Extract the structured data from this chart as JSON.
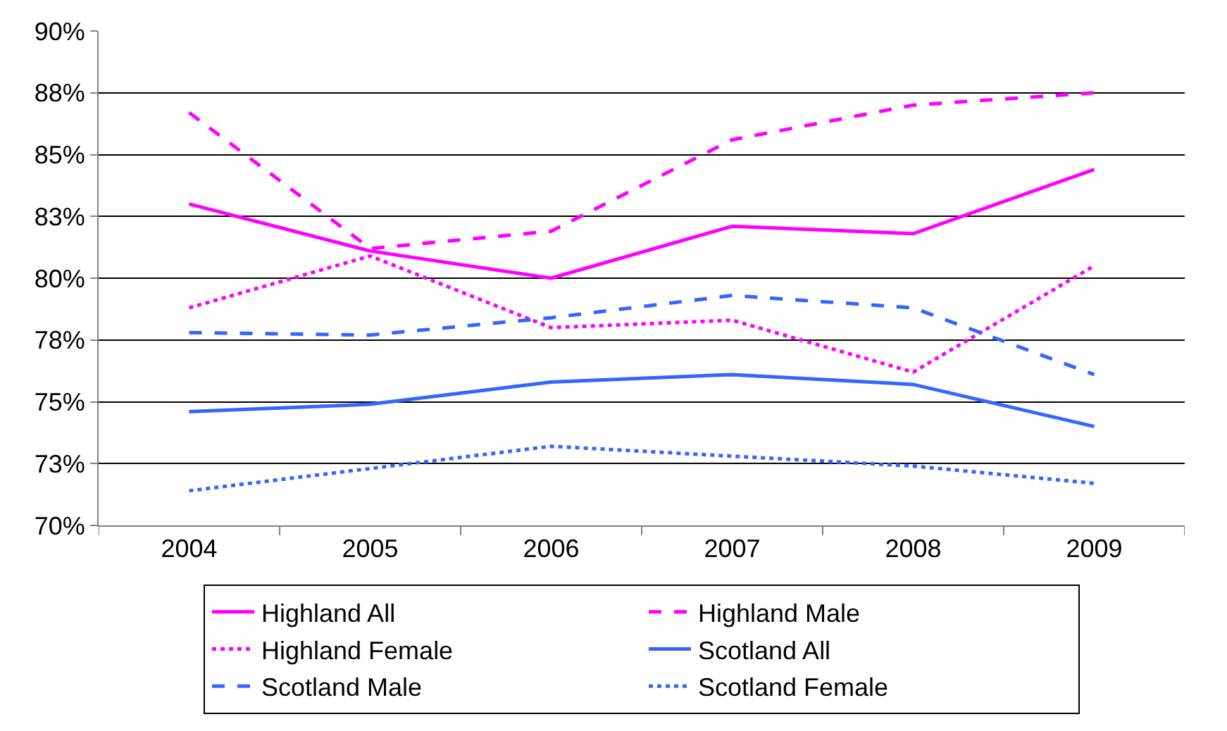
{
  "chart_data": {
    "type": "line",
    "categories": [
      "2004",
      "2005",
      "2006",
      "2007",
      "2008",
      "2009"
    ],
    "series": [
      {
        "name": "Highland All",
        "color": "#ff00ff",
        "line_style": "solid",
        "values": [
          83.0,
          81.1,
          80.0,
          82.1,
          81.8,
          84.4
        ]
      },
      {
        "name": "Highland Male",
        "color": "#ff00ff",
        "line_style": "dashed",
        "values": [
          86.7,
          81.2,
          81.9,
          85.6,
          87.0,
          87.5
        ]
      },
      {
        "name": "Highland Female",
        "color": "#ff00ff",
        "line_style": "dotted",
        "values": [
          78.8,
          80.9,
          78.0,
          78.3,
          76.2,
          80.5
        ]
      },
      {
        "name": "Scotland All",
        "color": "#3366ff",
        "line_style": "solid",
        "values": [
          74.6,
          74.9,
          75.8,
          76.1,
          75.7,
          74.0
        ]
      },
      {
        "name": "Scotland Male",
        "color": "#3366ff",
        "line_style": "dashed",
        "values": [
          77.8,
          77.7,
          78.4,
          79.3,
          78.8,
          76.1
        ]
      },
      {
        "name": "Scotland Female",
        "color": "#3366ff",
        "line_style": "dotted",
        "values": [
          71.4,
          72.3,
          73.2,
          72.8,
          72.4,
          71.7
        ]
      }
    ],
    "ylim": [
      70,
      90
    ],
    "yticks": [
      {
        "value": 70,
        "label": "70%"
      },
      {
        "value": 72.5,
        "label": "73%"
      },
      {
        "value": 75,
        "label": "75%"
      },
      {
        "value": 77.5,
        "label": "78%"
      },
      {
        "value": 80,
        "label": "80%"
      },
      {
        "value": 82.5,
        "label": "83%"
      },
      {
        "value": 85,
        "label": "85%"
      },
      {
        "value": 87.5,
        "label": "88%"
      },
      {
        "value": 90,
        "label": "90%"
      }
    ],
    "grid": "y",
    "legend": "bottom",
    "marker": "none"
  }
}
